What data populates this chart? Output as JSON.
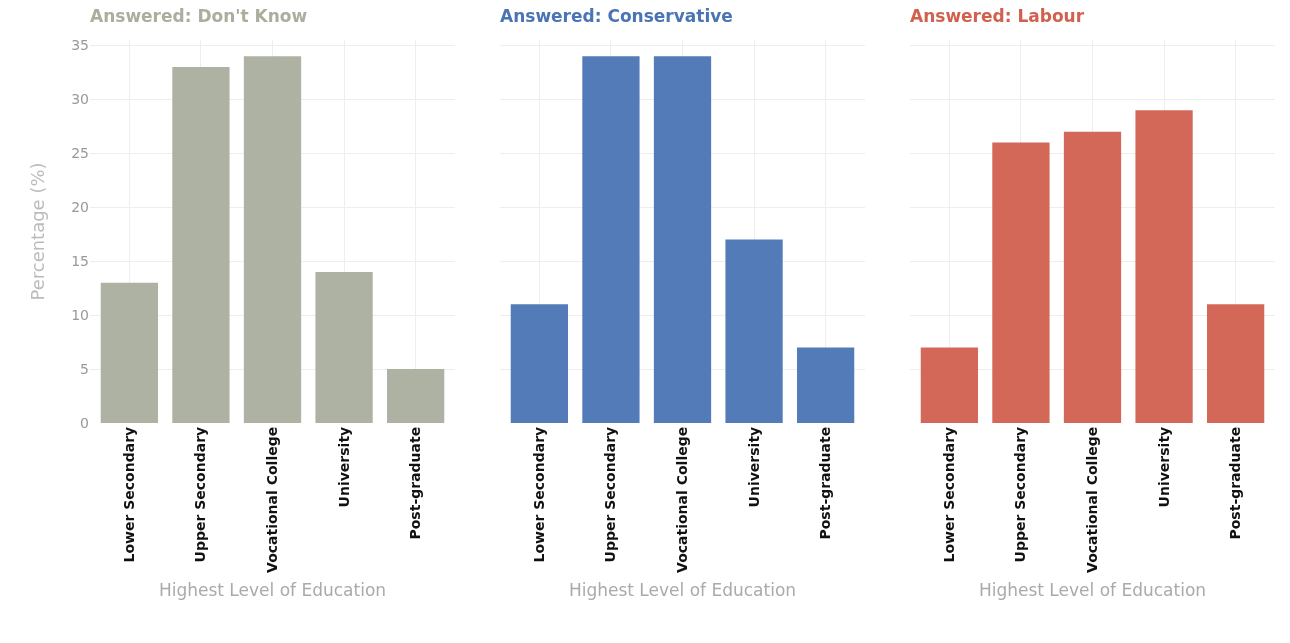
{
  "chart_data": [
    {
      "type": "bar",
      "title": "Answered: Don't Know",
      "xlabel": "Highest Level of Education",
      "ylabel": "Percentage (%)",
      "categories": [
        "Lower Secondary",
        "Upper Secondary",
        "Vocational College",
        "University",
        "Post-graduate"
      ],
      "values": [
        13,
        33,
        34,
        14,
        5
      ],
      "color": "#a9ae9d",
      "ylim": [
        0,
        35.5
      ],
      "yticks": [
        0,
        5,
        10,
        15,
        20,
        25,
        30,
        35
      ],
      "grid": true
    },
    {
      "type": "bar",
      "title": "Answered: Conservative",
      "xlabel": "Highest Level of Education",
      "categories": [
        "Lower Secondary",
        "Upper Secondary",
        "Vocational College",
        "University",
        "Post-graduate"
      ],
      "values": [
        11,
        34,
        34,
        17,
        7
      ],
      "color": "#4a74b4",
      "ylim": [
        0,
        35.5
      ],
      "yticks": [
        0,
        5,
        10,
        15,
        20,
        25,
        30,
        35
      ],
      "grid": true,
      "tick_labels": "x"
    },
    {
      "type": "bar",
      "title": "Answered: Labour",
      "xlabel": "Highest Level of Education",
      "categories": [
        "Lower Secondary",
        "Upper Secondary",
        "Vocational College",
        "University",
        "Post-graduate"
      ],
      "values": [
        7,
        26,
        27,
        29,
        11
      ],
      "color": "#d2604f",
      "ylim": [
        0,
        35.5
      ],
      "yticks": [
        0,
        5,
        10,
        15,
        20,
        25,
        30,
        35
      ],
      "grid": true,
      "tick_labels": "x"
    }
  ]
}
